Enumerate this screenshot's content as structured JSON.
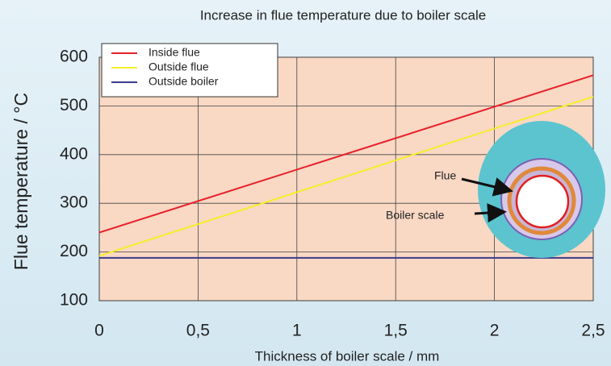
{
  "chart_data": {
    "type": "line",
    "title": "Increase in flue temperature due to boiler scale",
    "x_label": "Thickness of boiler scale  / mm",
    "y_label": "Flue temperature / °C",
    "x": [
      0,
      2.5
    ],
    "series": [
      {
        "name": "Inside flue",
        "color": "#e8202a",
        "values": [
          240,
          563
        ]
      },
      {
        "name": "Outside flue",
        "color": "#f7ee2a",
        "values": [
          192,
          519
        ]
      },
      {
        "name": "Outside boiler",
        "color": "#3a3a8c",
        "values": [
          188,
          188
        ]
      }
    ],
    "xlim": [
      0,
      2.5
    ],
    "xticks": [
      0,
      {
        "value": 0.5,
        "label": "0,5"
      },
      1,
      {
        "value": 1.5,
        "label": "1,5"
      },
      2,
      {
        "value": 2.5,
        "label": "2,5"
      }
    ],
    "ylim": [
      100,
      600
    ],
    "yticks": [
      100,
      200,
      300,
      400,
      500,
      600
    ],
    "grid": true,
    "legend": "upper left",
    "annotations": [
      "Flue",
      "Boiler scale"
    ]
  }
}
